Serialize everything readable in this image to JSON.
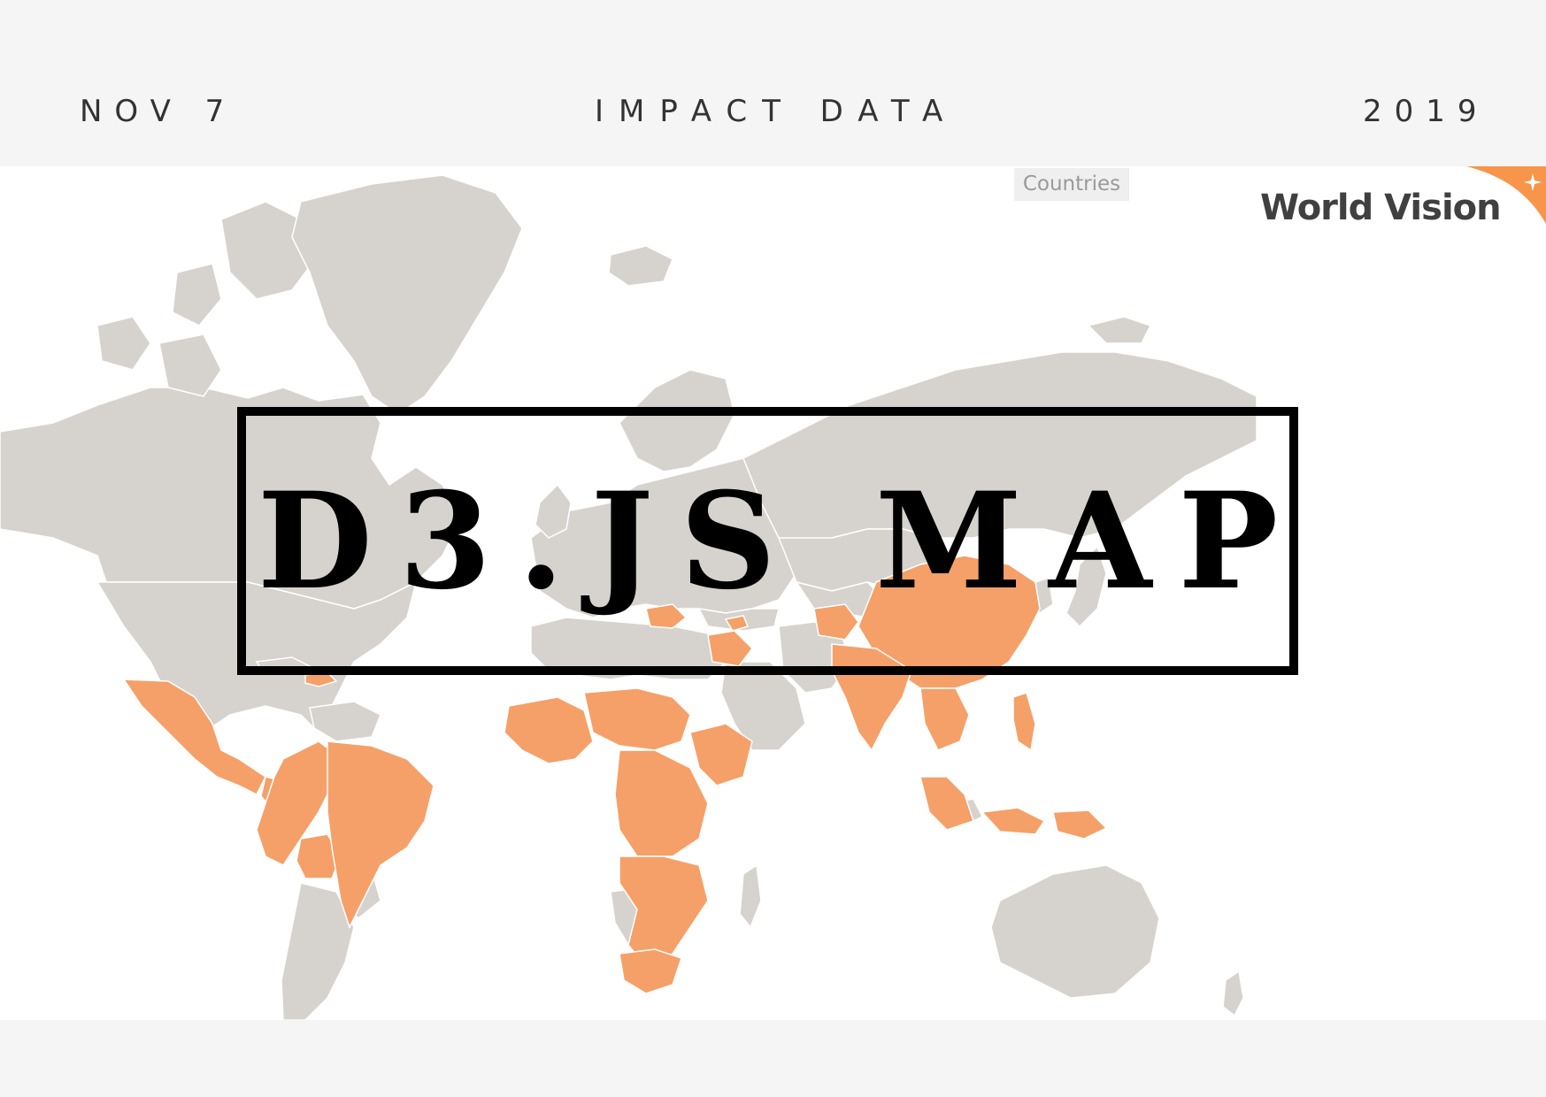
{
  "header": {
    "date": "NOV 7",
    "subtitle": "IMPACT DATA",
    "year": "2019"
  },
  "map": {
    "legend_label": "Countries",
    "land_color": "#d6d3ce",
    "highlight_color": "#f5a068",
    "border_color": "#ffffff",
    "highlighted_countries": [
      "Mexico",
      "Guatemala",
      "Honduras",
      "El Salvador",
      "Nicaragua",
      "Haiti",
      "Dominican Republic",
      "Colombia",
      "Ecuador",
      "Peru",
      "Bolivia",
      "Brazil",
      "Mauritania",
      "Mali",
      "Senegal",
      "Sierra Leone",
      "Ghana",
      "Niger",
      "Chad",
      "Sudan",
      "South Sudan",
      "Ethiopia",
      "Somalia",
      "Kenya",
      "Uganda",
      "Rwanda",
      "Burundi",
      "Tanzania",
      "DR Congo",
      "Central African Republic",
      "Angola",
      "Zambia",
      "Malawi",
      "Mozambique",
      "Zimbabwe",
      "Eswatini",
      "Lesotho",
      "South Africa",
      "Romania",
      "Armenia",
      "Georgia",
      "Lebanon",
      "Jordan",
      "Iraq",
      "Afghanistan",
      "India",
      "Nepal",
      "Bangladesh",
      "Myanmar",
      "Thailand",
      "Laos",
      "Cambodia",
      "Vietnam",
      "China",
      "Mongolia",
      "Philippines",
      "Indonesia",
      "Papua New Guinea"
    ]
  },
  "title": {
    "main": "D3.JS MAP"
  },
  "logo": {
    "text": "World Vision",
    "accent_color": "#f7954a"
  }
}
